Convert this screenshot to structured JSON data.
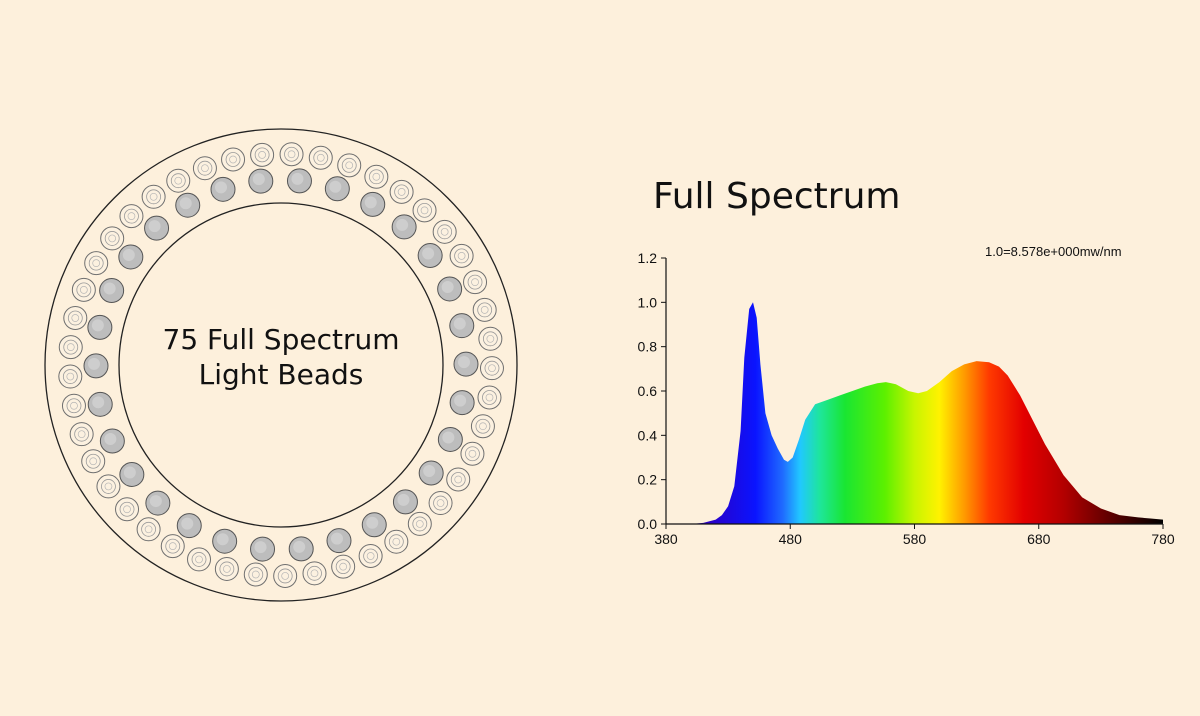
{
  "ring": {
    "label_line1": "75 Full Spectrum",
    "label_line2": "Light Beads",
    "outer_bead_count": 45,
    "inner_bead_count": 30
  },
  "chart_data": {
    "type": "area",
    "title": "Full Spectrum",
    "annotation": "1.0=8.578e+000mw/nm",
    "xlabel": "",
    "ylabel": "",
    "xlim": [
      380,
      780
    ],
    "ylim": [
      0,
      1.2
    ],
    "x_ticks": [
      "380",
      "480",
      "580",
      "680",
      "780"
    ],
    "y_ticks": [
      "0.0",
      "0.2",
      "0.4",
      "0.6",
      "0.8",
      "1.0",
      "1.2"
    ],
    "fill": "visible-spectrum gradient",
    "series": [
      {
        "x": [
          380,
          400,
          410,
          420,
          425,
          430,
          435,
          440,
          443,
          447,
          450,
          453,
          456,
          460,
          465,
          470,
          475,
          478,
          482,
          487,
          492,
          500,
          510,
          520,
          530,
          540,
          550,
          557,
          565,
          575,
          583,
          590,
          600,
          610,
          620,
          630,
          640,
          648,
          655,
          665,
          675,
          685,
          700,
          715,
          730,
          745,
          760,
          770,
          780
        ],
        "y": [
          0.0,
          0.0,
          0.005,
          0.02,
          0.04,
          0.08,
          0.17,
          0.42,
          0.75,
          0.97,
          1.0,
          0.93,
          0.72,
          0.5,
          0.4,
          0.34,
          0.29,
          0.28,
          0.3,
          0.38,
          0.47,
          0.54,
          0.56,
          0.58,
          0.6,
          0.62,
          0.635,
          0.64,
          0.63,
          0.6,
          0.59,
          0.6,
          0.64,
          0.69,
          0.72,
          0.735,
          0.73,
          0.71,
          0.67,
          0.58,
          0.47,
          0.36,
          0.22,
          0.12,
          0.07,
          0.04,
          0.03,
          0.025,
          0.02
        ]
      }
    ]
  },
  "colors": {
    "background": "#fdf0dc",
    "ring_stroke": "#222222",
    "bead_outline": "#6f6f6f",
    "bead_gray_fill": "#bdbdbd"
  }
}
